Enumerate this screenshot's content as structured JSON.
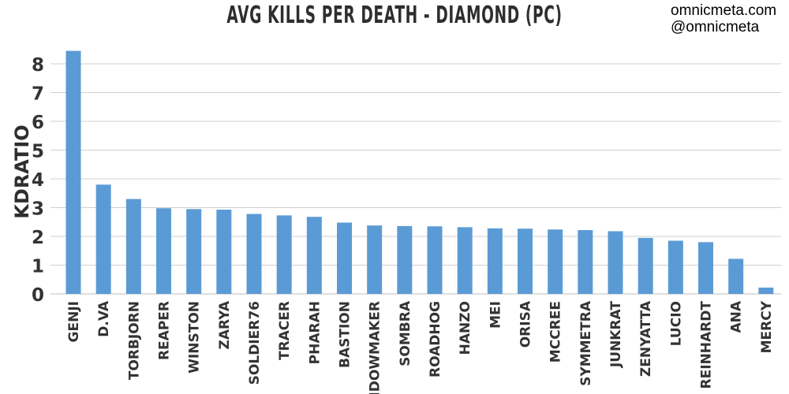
{
  "header": {
    "title": "AVG KILLS PER DEATH - DIAMOND (PC)",
    "credit_site": "omnicmeta.com",
    "credit_handle": "@omnicmeta"
  },
  "chart_data": {
    "type": "bar",
    "title": "AVG KILLS PER DEATH - DIAMOND (PC)",
    "xlabel": "",
    "ylabel": "KDRATIO",
    "ylim": [
      0,
      8.5
    ],
    "yticks": [
      0,
      1,
      2,
      3,
      4,
      5,
      6,
      7,
      8
    ],
    "grid": true,
    "bar_color": "#5b9bd5",
    "categories": [
      "GENJI",
      "D.VA",
      "TORBJORN",
      "REAPER",
      "WINSTON",
      "ZARYA",
      "SOLDIER76",
      "TRACER",
      "PHARAH",
      "BASTION",
      "WIDOWMAKER",
      "SOMBRA",
      "ROADHOG",
      "HANZO",
      "MEI",
      "ORISA",
      "MCCREE",
      "SYMMETRA",
      "JUNKRAT",
      "ZENYATTA",
      "LUCIO",
      "REINHARDT",
      "ANA",
      "MERCY"
    ],
    "values": [
      8.45,
      3.8,
      3.3,
      2.98,
      2.95,
      2.93,
      2.78,
      2.73,
      2.68,
      2.48,
      2.38,
      2.36,
      2.35,
      2.32,
      2.28,
      2.27,
      2.24,
      2.22,
      2.18,
      1.95,
      1.85,
      1.8,
      1.22,
      0.22
    ]
  }
}
